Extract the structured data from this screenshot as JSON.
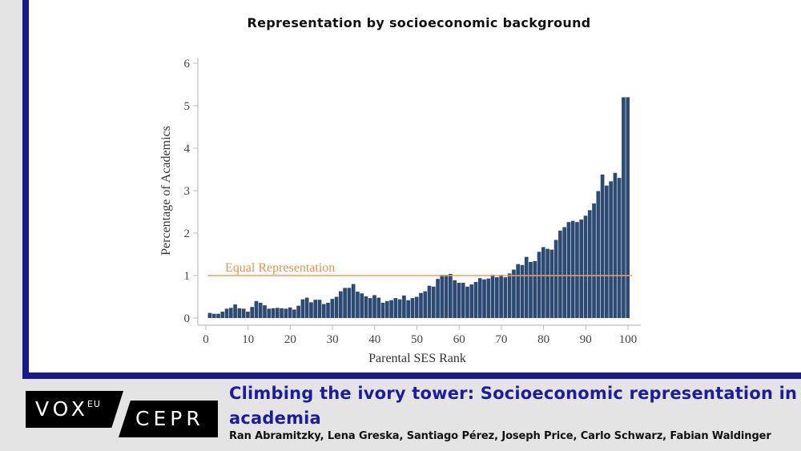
{
  "header": {
    "chart_title": "Representation by socioeconomic background"
  },
  "footer": {
    "logo_vox": "VOX",
    "logo_eu": "EU",
    "logo_cepr": "CEPR",
    "article_title": "Climbing the ivory tower: Socioeconomic representation in academia",
    "authors": "Ran Abramitzky, Lena Greska, Santiago Pérez, Joseph Price, Carlo Schwarz, Fabian Waldinger"
  },
  "colors": {
    "frame": "#1a1a8c",
    "bar": "#2c4a72",
    "reference_line": "#f0a060",
    "footer_title": "#1c1ca0"
  },
  "chart_data": {
    "type": "bar",
    "title": "Representation by socioeconomic background",
    "xlabel": "Parental SES Rank",
    "ylabel": "Percentage of Academics",
    "xlim": [
      0,
      100
    ],
    "ylim": [
      0,
      6
    ],
    "xticks": [
      0,
      10,
      20,
      30,
      40,
      50,
      60,
      70,
      80,
      90,
      100
    ],
    "yticks": [
      0,
      1,
      2,
      3,
      4,
      5,
      6
    ],
    "grid": false,
    "reference_line": {
      "label": "Equal Representation",
      "y": 1.0
    },
    "x": [
      1,
      2,
      3,
      4,
      5,
      6,
      7,
      8,
      9,
      10,
      11,
      12,
      13,
      14,
      15,
      16,
      17,
      18,
      19,
      20,
      21,
      22,
      23,
      24,
      25,
      26,
      27,
      28,
      29,
      30,
      31,
      32,
      33,
      34,
      35,
      36,
      37,
      38,
      39,
      40,
      41,
      42,
      43,
      44,
      45,
      46,
      47,
      48,
      49,
      50,
      51,
      52,
      53,
      54,
      55,
      56,
      57,
      58,
      59,
      60,
      61,
      62,
      63,
      64,
      65,
      66,
      67,
      68,
      69,
      70,
      71,
      72,
      73,
      74,
      75,
      76,
      77,
      78,
      79,
      80,
      81,
      82,
      83,
      84,
      85,
      86,
      87,
      88,
      89,
      90,
      91,
      92,
      93,
      94,
      95,
      96,
      97,
      98,
      99,
      100
    ],
    "values": [
      0.12,
      0.1,
      0.1,
      0.15,
      0.22,
      0.24,
      0.32,
      0.23,
      0.22,
      0.15,
      0.26,
      0.4,
      0.36,
      0.3,
      0.22,
      0.23,
      0.24,
      0.23,
      0.22,
      0.25,
      0.2,
      0.29,
      0.44,
      0.48,
      0.37,
      0.43,
      0.43,
      0.33,
      0.36,
      0.45,
      0.5,
      0.63,
      0.71,
      0.71,
      0.8,
      0.62,
      0.58,
      0.51,
      0.47,
      0.54,
      0.48,
      0.36,
      0.4,
      0.42,
      0.47,
      0.44,
      0.53,
      0.42,
      0.47,
      0.5,
      0.59,
      0.63,
      0.76,
      0.74,
      0.92,
      1.02,
      1.02,
      1.04,
      0.89,
      0.83,
      0.83,
      0.74,
      0.79,
      0.85,
      0.94,
      0.91,
      0.93,
      1.02,
      0.96,
      1.02,
      0.96,
      1.05,
      1.14,
      1.27,
      1.25,
      1.44,
      1.32,
      1.34,
      1.56,
      1.67,
      1.63,
      1.61,
      1.84,
      2.06,
      2.14,
      2.26,
      2.29,
      2.26,
      2.32,
      2.41,
      2.54,
      2.7,
      2.99,
      3.38,
      3.12,
      3.22,
      3.42,
      3.3,
      5.2,
      5.2
    ]
  }
}
